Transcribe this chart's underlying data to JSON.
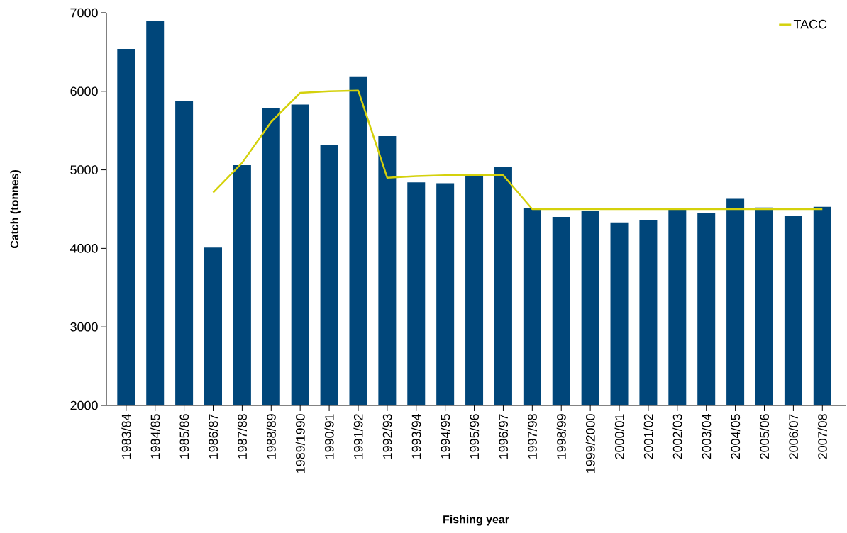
{
  "chart_data": {
    "type": "bar",
    "xlabel": "Fishing year",
    "ylabel": "Catch (tonnes)",
    "categories": [
      "1983/84",
      "1984/85",
      "1985/86",
      "1986/87",
      "1987/88",
      "1988/89",
      "1989/1990",
      "1990/91",
      "1991/92",
      "1992/93",
      "1993/94",
      "1994/95",
      "1995/96",
      "1996/97",
      "1997/98",
      "1998/99",
      "1999/2000",
      "2000/01",
      "2001/02",
      "2002/03",
      "2003/04",
      "2004/05",
      "2005/06",
      "2006/07",
      "2007/08"
    ],
    "series": [
      {
        "color": "#00467a",
        "values": [
          6540,
          6900,
          5880,
          4010,
          5060,
          5790,
          5830,
          5320,
          6190,
          5430,
          4840,
          4830,
          4920,
          5040,
          4510,
          4400,
          4480,
          4330,
          4360,
          4490,
          4450,
          4630,
          4520,
          4410,
          4530
        ]
      },
      {
        "name": "TACC",
        "type": "line",
        "color": "#d4d10c",
        "values": [
          null,
          null,
          null,
          4710,
          5090,
          5610,
          5980,
          6000,
          6010,
          4900,
          4920,
          4930,
          4930,
          4930,
          4500,
          4500,
          4500,
          4500,
          4500,
          4500,
          4500,
          4500,
          4500,
          4500,
          4500
        ]
      }
    ],
    "ylim": [
      2000,
      7000
    ],
    "yticks": [
      2000,
      3000,
      4000,
      5000,
      6000,
      7000
    ],
    "legend": "top right"
  }
}
